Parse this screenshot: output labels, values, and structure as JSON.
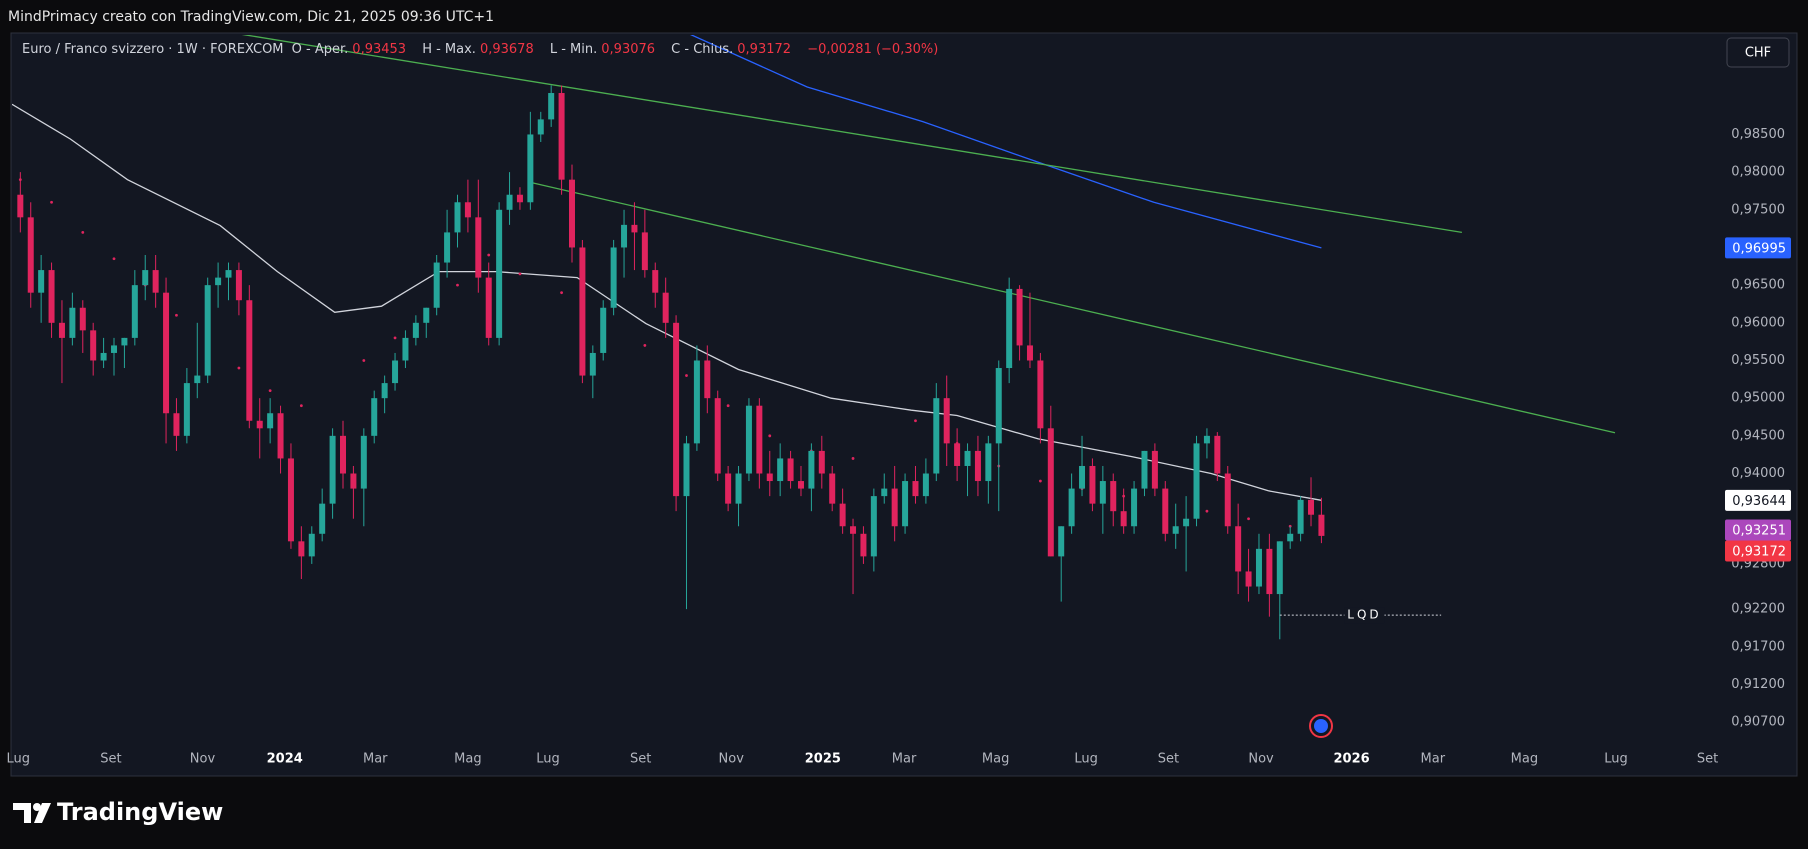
{
  "chart_data": {
    "type": "candlestick",
    "header": "MindPrimacy creato con TradingView.com, Dic 21, 2025 09:36 UTC+1",
    "title": "Euro / Franco svizzero · 1W · FOREXCOM",
    "legend": [
      {
        "label": "O - Aper.",
        "value": "0,93453"
      },
      {
        "label": "H - Max.",
        "value": "0,93678"
      },
      {
        "label": "L - Min.",
        "value": "0,93076"
      },
      {
        "label": "C - Chius.",
        "value": "0,93172"
      }
    ],
    "change": "−0,00281 (−0,30%)",
    "currency": "CHF",
    "brand": "TradingView",
    "colors": {
      "up": "#26a69a",
      "down": "#e0245e"
    },
    "x": [
      0,
      1,
      2,
      3,
      4,
      5,
      6,
      7,
      8,
      9,
      10,
      11,
      12,
      13,
      14,
      15,
      16,
      17,
      18,
      19,
      20,
      21,
      22,
      23,
      24,
      25,
      26,
      27,
      28,
      29,
      30,
      31,
      32,
      33,
      34,
      35,
      36,
      37,
      38,
      39,
      40,
      41,
      42,
      43,
      44,
      45,
      46,
      47,
      48,
      49,
      50,
      51,
      52,
      53,
      54,
      55,
      56,
      57,
      58,
      59,
      60,
      61,
      62,
      63,
      64,
      65,
      66,
      67,
      68,
      69,
      70,
      71,
      72,
      73,
      74,
      75,
      76,
      77,
      78,
      79,
      80,
      81,
      82,
      83,
      84,
      85,
      86,
      87,
      88,
      89,
      90,
      91,
      92,
      93,
      94,
      95,
      96,
      97,
      98,
      99,
      100,
      101,
      102,
      103,
      104,
      105,
      106,
      107,
      108,
      109,
      110,
      111,
      112,
      113,
      114,
      115,
      116,
      117,
      118,
      119,
      120,
      121,
      122,
      123,
      124,
      125
    ],
    "ohlc": [
      [
        0.977,
        0.98,
        0.972,
        0.974
      ],
      [
        0.974,
        0.976,
        0.962,
        0.964
      ],
      [
        0.964,
        0.969,
        0.96,
        0.967
      ],
      [
        0.967,
        0.968,
        0.958,
        0.96
      ],
      [
        0.96,
        0.963,
        0.952,
        0.958
      ],
      [
        0.958,
        0.964,
        0.957,
        0.962
      ],
      [
        0.962,
        0.963,
        0.956,
        0.959
      ],
      [
        0.959,
        0.96,
        0.953,
        0.955
      ],
      [
        0.955,
        0.958,
        0.954,
        0.956
      ],
      [
        0.956,
        0.958,
        0.953,
        0.957
      ],
      [
        0.957,
        0.958,
        0.954,
        0.958
      ],
      [
        0.958,
        0.967,
        0.957,
        0.965
      ],
      [
        0.965,
        0.969,
        0.963,
        0.967
      ],
      [
        0.967,
        0.969,
        0.962,
        0.964
      ],
      [
        0.964,
        0.966,
        0.944,
        0.948
      ],
      [
        0.948,
        0.95,
        0.943,
        0.945
      ],
      [
        0.945,
        0.954,
        0.944,
        0.952
      ],
      [
        0.952,
        0.96,
        0.95,
        0.953
      ],
      [
        0.953,
        0.966,
        0.952,
        0.965
      ],
      [
        0.965,
        0.968,
        0.962,
        0.966
      ],
      [
        0.966,
        0.968,
        0.963,
        0.967
      ],
      [
        0.967,
        0.968,
        0.961,
        0.963
      ],
      [
        0.963,
        0.965,
        0.946,
        0.947
      ],
      [
        0.947,
        0.95,
        0.942,
        0.946
      ],
      [
        0.946,
        0.95,
        0.944,
        0.948
      ],
      [
        0.948,
        0.949,
        0.94,
        0.942
      ],
      [
        0.942,
        0.944,
        0.93,
        0.931
      ],
      [
        0.931,
        0.933,
        0.926,
        0.929
      ],
      [
        0.929,
        0.933,
        0.928,
        0.932
      ],
      [
        0.932,
        0.938,
        0.931,
        0.936
      ],
      [
        0.936,
        0.946,
        0.934,
        0.945
      ],
      [
        0.945,
        0.947,
        0.938,
        0.94
      ],
      [
        0.94,
        0.941,
        0.934,
        0.938
      ],
      [
        0.938,
        0.946,
        0.933,
        0.945
      ],
      [
        0.945,
        0.951,
        0.944,
        0.95
      ],
      [
        0.95,
        0.953,
        0.948,
        0.952
      ],
      [
        0.952,
        0.956,
        0.951,
        0.955
      ],
      [
        0.955,
        0.959,
        0.954,
        0.958
      ],
      [
        0.958,
        0.961,
        0.957,
        0.96
      ],
      [
        0.96,
        0.962,
        0.958,
        0.962
      ],
      [
        0.962,
        0.969,
        0.961,
        0.968
      ],
      [
        0.968,
        0.975,
        0.966,
        0.972
      ],
      [
        0.972,
        0.977,
        0.97,
        0.976
      ],
      [
        0.976,
        0.979,
        0.972,
        0.974
      ],
      [
        0.974,
        0.979,
        0.964,
        0.966
      ],
      [
        0.966,
        0.968,
        0.957,
        0.958
      ],
      [
        0.958,
        0.976,
        0.957,
        0.975
      ],
      [
        0.975,
        0.98,
        0.973,
        0.977
      ],
      [
        0.977,
        0.978,
        0.975,
        0.976
      ],
      [
        0.976,
        0.988,
        0.975,
        0.985
      ],
      [
        0.985,
        0.988,
        0.984,
        0.987
      ],
      [
        0.987,
        0.9915,
        0.986,
        0.9905
      ],
      [
        0.9905,
        0.9915,
        0.977,
        0.979
      ],
      [
        0.979,
        0.981,
        0.968,
        0.97
      ],
      [
        0.97,
        0.971,
        0.952,
        0.953
      ],
      [
        0.953,
        0.957,
        0.95,
        0.956
      ],
      [
        0.956,
        0.963,
        0.955,
        0.962
      ],
      [
        0.962,
        0.971,
        0.961,
        0.97
      ],
      [
        0.97,
        0.975,
        0.966,
        0.973
      ],
      [
        0.973,
        0.976,
        0.967,
        0.972
      ],
      [
        0.972,
        0.975,
        0.966,
        0.967
      ],
      [
        0.967,
        0.968,
        0.962,
        0.964
      ],
      [
        0.964,
        0.966,
        0.958,
        0.96
      ],
      [
        0.96,
        0.961,
        0.935,
        0.937
      ],
      [
        0.937,
        0.945,
        0.922,
        0.944
      ],
      [
        0.944,
        0.957,
        0.943,
        0.955
      ],
      [
        0.955,
        0.957,
        0.948,
        0.95
      ],
      [
        0.95,
        0.951,
        0.939,
        0.94
      ],
      [
        0.94,
        0.941,
        0.935,
        0.936
      ],
      [
        0.936,
        0.941,
        0.933,
        0.94
      ],
      [
        0.94,
        0.95,
        0.939,
        0.949
      ],
      [
        0.949,
        0.95,
        0.938,
        0.94
      ],
      [
        0.94,
        0.943,
        0.937,
        0.939
      ],
      [
        0.939,
        0.944,
        0.937,
        0.942
      ],
      [
        0.942,
        0.943,
        0.938,
        0.939
      ],
      [
        0.939,
        0.941,
        0.937,
        0.938
      ],
      [
        0.938,
        0.944,
        0.935,
        0.943
      ],
      [
        0.943,
        0.945,
        0.938,
        0.94
      ],
      [
        0.94,
        0.941,
        0.935,
        0.936
      ],
      [
        0.936,
        0.938,
        0.932,
        0.933
      ],
      [
        0.933,
        0.934,
        0.924,
        0.932
      ],
      [
        0.932,
        0.933,
        0.928,
        0.929
      ],
      [
        0.929,
        0.938,
        0.927,
        0.937
      ],
      [
        0.937,
        0.94,
        0.936,
        0.938
      ],
      [
        0.938,
        0.941,
        0.931,
        0.933
      ],
      [
        0.933,
        0.94,
        0.932,
        0.939
      ],
      [
        0.939,
        0.941,
        0.936,
        0.937
      ],
      [
        0.937,
        0.942,
        0.936,
        0.94
      ],
      [
        0.94,
        0.952,
        0.939,
        0.95
      ],
      [
        0.95,
        0.953,
        0.941,
        0.944
      ],
      [
        0.944,
        0.946,
        0.939,
        0.941
      ],
      [
        0.941,
        0.944,
        0.937,
        0.943
      ],
      [
        0.943,
        0.945,
        0.937,
        0.939
      ],
      [
        0.939,
        0.945,
        0.936,
        0.944
      ],
      [
        0.944,
        0.955,
        0.935,
        0.954
      ],
      [
        0.954,
        0.966,
        0.952,
        0.9645
      ],
      [
        0.9645,
        0.965,
        0.955,
        0.957
      ],
      [
        0.957,
        0.964,
        0.954,
        0.955
      ],
      [
        0.955,
        0.956,
        0.944,
        0.946
      ],
      [
        0.946,
        0.949,
        0.929,
        0.929
      ],
      [
        0.929,
        0.933,
        0.923,
        0.933
      ],
      [
        0.933,
        0.94,
        0.932,
        0.938
      ],
      [
        0.938,
        0.945,
        0.937,
        0.941
      ],
      [
        0.941,
        0.942,
        0.935,
        0.936
      ],
      [
        0.936,
        0.941,
        0.932,
        0.939
      ],
      [
        0.939,
        0.94,
        0.933,
        0.935
      ],
      [
        0.935,
        0.938,
        0.932,
        0.933
      ],
      [
        0.933,
        0.939,
        0.932,
        0.938
      ],
      [
        0.938,
        0.943,
        0.937,
        0.943
      ],
      [
        0.943,
        0.944,
        0.937,
        0.938
      ],
      [
        0.938,
        0.939,
        0.931,
        0.932
      ],
      [
        0.932,
        0.936,
        0.93,
        0.933
      ],
      [
        0.933,
        0.937,
        0.927,
        0.934
      ],
      [
        0.934,
        0.945,
        0.933,
        0.944
      ],
      [
        0.944,
        0.946,
        0.942,
        0.945
      ],
      [
        0.945,
        0.9455,
        0.939,
        0.94
      ],
      [
        0.94,
        0.941,
        0.932,
        0.933
      ],
      [
        0.933,
        0.936,
        0.924,
        0.927
      ],
      [
        0.927,
        0.93,
        0.923,
        0.925
      ],
      [
        0.925,
        0.932,
        0.924,
        0.93
      ],
      [
        0.93,
        0.932,
        0.921,
        0.924
      ],
      [
        0.924,
        0.931,
        0.918,
        0.931
      ],
      [
        0.931,
        0.933,
        0.93,
        0.932
      ],
      [
        0.932,
        0.937,
        0.931,
        0.9365
      ],
      [
        0.9365,
        0.9395,
        0.933,
        0.93453
      ],
      [
        0.93453,
        0.93678,
        0.93076,
        0.93172
      ]
    ],
    "overlays": [
      {
        "style": "line",
        "color": "#d1d4dc",
        "x": [
          -0.8,
          4.8,
          10.3,
          19.2,
          24.7,
          30.2,
          34.7,
          40.2,
          45.7,
          53.5,
          60.1,
          69,
          77.9,
          85.6,
          90,
          97.8,
          106.6,
          114.4,
          119.9,
          125
        ],
        "values": [
          0.989,
          0.9844,
          0.979,
          0.9729,
          0.9668,
          0.9614,
          0.9622,
          0.9668,
          0.9668,
          0.966,
          0.9599,
          0.9538,
          0.95,
          0.9484,
          0.9477,
          0.9446,
          0.9423,
          0.94,
          0.9377,
          0.93644
        ]
      },
      {
        "style": "line",
        "color": "#2962ff",
        "x": [
          64,
          75.6,
          86.7,
          97.8,
          108.9,
          125
        ],
        "values": [
          0.9985,
          0.9913,
          0.9867,
          0.9813,
          0.976,
          0.96995
        ]
      },
      {
        "style": "line",
        "color": "#4caf50",
        "x": [
          20.3,
          138.5
        ],
        "values": [
          0.9985,
          0.972
        ]
      },
      {
        "style": "line",
        "color": "#4caf50",
        "x": [
          48.8,
          153.2
        ],
        "values": [
          0.9787,
          0.9454
        ]
      },
      {
        "style": "dots",
        "color": "#e0245e",
        "x": [
          0,
          3,
          6,
          9,
          12,
          15,
          18,
          21,
          24,
          27,
          33,
          36,
          39,
          42,
          45,
          48,
          52,
          56,
          60,
          64,
          68,
          72,
          76,
          80,
          86,
          90,
          94,
          98,
          102,
          106,
          110,
          114,
          118,
          122,
          125
        ],
        "values": [
          0.979,
          0.976,
          0.972,
          0.9685,
          0.965,
          0.961,
          0.9575,
          0.954,
          0.951,
          0.949,
          0.955,
          0.958,
          0.961,
          0.965,
          0.969,
          0.9665,
          0.964,
          0.961,
          0.957,
          0.953,
          0.949,
          0.945,
          0.943,
          0.942,
          0.947,
          0.944,
          0.941,
          0.939,
          0.938,
          0.937,
          0.936,
          0.935,
          0.934,
          0.933,
          0.93251
        ]
      }
    ],
    "price_labels": [
      {
        "value": 0.96995,
        "label": "0,96995",
        "color": "#2962ff",
        "text_color": "#ffffff"
      },
      {
        "value": 0.93644,
        "label": "0,93644",
        "color": "#ffffff",
        "text_color": "#131722"
      },
      {
        "value": 0.93251,
        "label": "0,93251",
        "color": "#ab47bc",
        "text_color": "#ffffff"
      },
      {
        "value": 0.93172,
        "label": "0,93172",
        "color": "#f23645",
        "text_color": "#ffffff"
      }
    ],
    "annotation": {
      "text": "LQD",
      "level": 0.9212,
      "x": [
        121,
        136.5
      ]
    },
    "xlim": [
      -0.8,
      163.1
    ],
    "xticks": [
      {
        "value": -0.2,
        "label": "Lug"
      },
      {
        "value": 8.7,
        "label": "Set"
      },
      {
        "value": 17.5,
        "label": "Nov"
      },
      {
        "value": 25.4,
        "label": "2024"
      },
      {
        "value": 34.1,
        "label": "Mar"
      },
      {
        "value": 43.0,
        "label": "Mag"
      },
      {
        "value": 50.7,
        "label": "Lug"
      },
      {
        "value": 59.6,
        "label": "Set"
      },
      {
        "value": 68.3,
        "label": "Nov"
      },
      {
        "value": 77.1,
        "label": "2025"
      },
      {
        "value": 84.9,
        "label": "Mar"
      },
      {
        "value": 93.7,
        "label": "Mag"
      },
      {
        "value": 102.4,
        "label": "Lug"
      },
      {
        "value": 110.3,
        "label": "Set"
      },
      {
        "value": 119.2,
        "label": "Nov"
      },
      {
        "value": 127.9,
        "label": "2026"
      },
      {
        "value": 135.7,
        "label": "Mar"
      },
      {
        "value": 144.5,
        "label": "Mag"
      },
      {
        "value": 153.3,
        "label": "Lug"
      },
      {
        "value": 162.1,
        "label": "Set"
      }
    ],
    "ylim": [
      0.9041,
      0.9982
    ],
    "yticks": [
      {
        "value": 0.985,
        "label": "0,98500"
      },
      {
        "value": 0.98,
        "label": "0,98000"
      },
      {
        "value": 0.975,
        "label": "0,97500"
      },
      {
        "value": 0.965,
        "label": "0,96500"
      },
      {
        "value": 0.96,
        "label": "0,96000"
      },
      {
        "value": 0.955,
        "label": "0,95500"
      },
      {
        "value": 0.95,
        "label": "0,95000"
      },
      {
        "value": 0.945,
        "label": "0,94500"
      },
      {
        "value": 0.94,
        "label": "0,94000"
      },
      {
        "value": 0.928,
        "label": "0,92800"
      },
      {
        "value": 0.922,
        "label": "0,92200"
      },
      {
        "value": 0.917,
        "label": "0,91700"
      },
      {
        "value": 0.912,
        "label": "0,91200"
      },
      {
        "value": 0.907,
        "label": "0,90700"
      }
    ],
    "grid": false
  }
}
